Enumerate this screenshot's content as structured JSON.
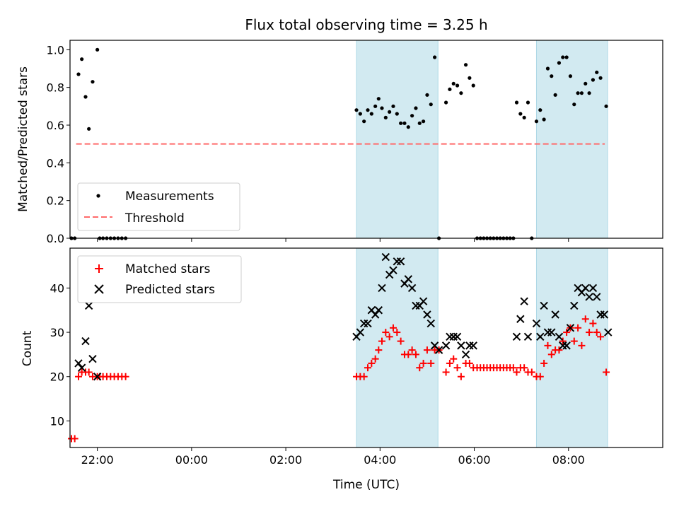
{
  "figure": {
    "title": "Flux total observing time = 3.25 h",
    "xlabel": "Time (UTC)"
  },
  "colors": {
    "band": "#add8e6",
    "threshold": "#ff6b6b",
    "matched": "#ff0000",
    "predicted": "#000000",
    "measurement": "#000000"
  },
  "chart_data": [
    {
      "type": "scatter",
      "panel": "ratio",
      "ylabel": "Matched/Predicted stars",
      "xlim": [
        -2.58,
        10.0
      ],
      "ylim": [
        0.0,
        1.05
      ],
      "x_ticks": [
        -2,
        0,
        2,
        4,
        6,
        8
      ],
      "x_tick_labels": [
        "22:00",
        "00:00",
        "02:00",
        "04:00",
        "06:00",
        "08:00"
      ],
      "y_ticks": [
        0.0,
        0.2,
        0.4,
        0.6,
        0.8,
        1.0
      ],
      "y_tick_labels": [
        "0.0",
        "0.2",
        "0.4",
        "0.6",
        "0.8",
        "1.0"
      ],
      "legend_placement": "lower-left",
      "legend": [
        {
          "key": "measurements",
          "label": "Measurements"
        },
        {
          "key": "threshold",
          "label": "Threshold"
        }
      ],
      "highlight_bands": [
        [
          3.5,
          5.23
        ],
        [
          7.32,
          8.83
        ]
      ],
      "threshold": {
        "y": 0.5,
        "x_range": [
          -2.45,
          8.77
        ]
      },
      "series": [
        {
          "name": "Measurements",
          "points": [
            [
              -2.55,
              0.0
            ],
            [
              -2.48,
              0.0
            ],
            [
              -2.4,
              0.87
            ],
            [
              -2.33,
              0.95
            ],
            [
              -2.25,
              0.75
            ],
            [
              -2.18,
              0.58
            ],
            [
              -2.1,
              0.83
            ],
            [
              -2.0,
              1.0
            ],
            [
              -1.95,
              0.0
            ],
            [
              -1.88,
              0.0
            ],
            [
              -1.8,
              0.0
            ],
            [
              -1.72,
              0.0
            ],
            [
              -1.64,
              0.0
            ],
            [
              -1.56,
              0.0
            ],
            [
              -1.48,
              0.0
            ],
            [
              -1.4,
              0.0
            ],
            [
              3.5,
              0.68
            ],
            [
              3.58,
              0.66
            ],
            [
              3.66,
              0.62
            ],
            [
              3.74,
              0.68
            ],
            [
              3.82,
              0.66
            ],
            [
              3.9,
              0.7
            ],
            [
              3.97,
              0.74
            ],
            [
              4.04,
              0.69
            ],
            [
              4.12,
              0.64
            ],
            [
              4.2,
              0.67
            ],
            [
              4.28,
              0.7
            ],
            [
              4.36,
              0.66
            ],
            [
              4.44,
              0.61
            ],
            [
              4.52,
              0.61
            ],
            [
              4.6,
              0.59
            ],
            [
              4.68,
              0.65
            ],
            [
              4.76,
              0.69
            ],
            [
              4.84,
              0.61
            ],
            [
              4.92,
              0.62
            ],
            [
              5.0,
              0.76
            ],
            [
              5.08,
              0.71
            ],
            [
              5.16,
              0.96
            ],
            [
              5.25,
              0.0
            ],
            [
              5.4,
              0.72
            ],
            [
              5.48,
              0.79
            ],
            [
              5.56,
              0.82
            ],
            [
              5.64,
              0.81
            ],
            [
              5.72,
              0.77
            ],
            [
              5.82,
              0.92
            ],
            [
              5.9,
              0.85
            ],
            [
              5.98,
              0.81
            ],
            [
              6.06,
              0.0
            ],
            [
              6.13,
              0.0
            ],
            [
              6.2,
              0.0
            ],
            [
              6.27,
              0.0
            ],
            [
              6.34,
              0.0
            ],
            [
              6.41,
              0.0
            ],
            [
              6.48,
              0.0
            ],
            [
              6.55,
              0.0
            ],
            [
              6.62,
              0.0
            ],
            [
              6.69,
              0.0
            ],
            [
              6.76,
              0.0
            ],
            [
              6.83,
              0.0
            ],
            [
              6.9,
              0.72
            ],
            [
              6.98,
              0.66
            ],
            [
              7.06,
              0.64
            ],
            [
              7.14,
              0.72
            ],
            [
              7.22,
              0.0
            ],
            [
              7.32,
              0.62
            ],
            [
              7.4,
              0.68
            ],
            [
              7.48,
              0.63
            ],
            [
              7.56,
              0.9
            ],
            [
              7.64,
              0.86
            ],
            [
              7.72,
              0.76
            ],
            [
              7.8,
              0.93
            ],
            [
              7.88,
              0.96
            ],
            [
              7.96,
              0.96
            ],
            [
              8.04,
              0.86
            ],
            [
              8.12,
              0.71
            ],
            [
              8.2,
              0.77
            ],
            [
              8.28,
              0.77
            ],
            [
              8.36,
              0.82
            ],
            [
              8.44,
              0.77
            ],
            [
              8.52,
              0.84
            ],
            [
              8.6,
              0.88
            ],
            [
              8.68,
              0.85
            ],
            [
              8.8,
              0.7
            ]
          ]
        }
      ]
    },
    {
      "type": "scatter",
      "panel": "counts",
      "ylabel": "Count",
      "xlim": [
        -2.58,
        10.0
      ],
      "ylim": [
        4.0,
        49.0
      ],
      "x_ticks": [
        -2,
        0,
        2,
        4,
        6,
        8
      ],
      "x_tick_labels": [
        "22:00",
        "00:00",
        "02:00",
        "04:00",
        "06:00",
        "08:00"
      ],
      "y_ticks": [
        10,
        20,
        30,
        40
      ],
      "y_tick_labels": [
        "10",
        "20",
        "30",
        "40"
      ],
      "legend_placement": "upper-left",
      "legend": [
        {
          "key": "matched",
          "label": "Matched stars"
        },
        {
          "key": "predicted",
          "label": "Predicted stars"
        }
      ],
      "highlight_bands": [
        [
          3.5,
          5.23
        ],
        [
          7.32,
          8.83
        ]
      ],
      "series": [
        {
          "name": "Matched stars",
          "marker": "plus",
          "points": [
            [
              -2.55,
              6
            ],
            [
              -2.48,
              6
            ],
            [
              -2.4,
              20
            ],
            [
              -2.33,
              21
            ],
            [
              -2.25,
              21
            ],
            [
              -2.18,
              21
            ],
            [
              -2.1,
              20
            ],
            [
              -2.0,
              20
            ],
            [
              -1.95,
              20
            ],
            [
              -1.88,
              20
            ],
            [
              -1.8,
              20
            ],
            [
              -1.72,
              20
            ],
            [
              -1.64,
              20
            ],
            [
              -1.56,
              20
            ],
            [
              -1.48,
              20
            ],
            [
              -1.4,
              20
            ],
            [
              3.5,
              20
            ],
            [
              3.58,
              20
            ],
            [
              3.66,
              20
            ],
            [
              3.74,
              22
            ],
            [
              3.82,
              23
            ],
            [
              3.9,
              24
            ],
            [
              3.97,
              26
            ],
            [
              4.04,
              28
            ],
            [
              4.12,
              30
            ],
            [
              4.2,
              29
            ],
            [
              4.28,
              31
            ],
            [
              4.36,
              30
            ],
            [
              4.44,
              28
            ],
            [
              4.52,
              25
            ],
            [
              4.6,
              25
            ],
            [
              4.68,
              26
            ],
            [
              4.76,
              25
            ],
            [
              4.84,
              22
            ],
            [
              4.92,
              23
            ],
            [
              5.0,
              26
            ],
            [
              5.08,
              23
            ],
            [
              5.16,
              26
            ],
            [
              5.25,
              26
            ],
            [
              5.4,
              21
            ],
            [
              5.48,
              23
            ],
            [
              5.56,
              24
            ],
            [
              5.64,
              22
            ],
            [
              5.72,
              20
            ],
            [
              5.82,
              23
            ],
            [
              5.9,
              23
            ],
            [
              5.98,
              22
            ],
            [
              6.06,
              22
            ],
            [
              6.13,
              22
            ],
            [
              6.2,
              22
            ],
            [
              6.27,
              22
            ],
            [
              6.34,
              22
            ],
            [
              6.41,
              22
            ],
            [
              6.48,
              22
            ],
            [
              6.55,
              22
            ],
            [
              6.62,
              22
            ],
            [
              6.69,
              22
            ],
            [
              6.76,
              22
            ],
            [
              6.83,
              22
            ],
            [
              6.9,
              21
            ],
            [
              6.98,
              22
            ],
            [
              7.06,
              22
            ],
            [
              7.14,
              21
            ],
            [
              7.22,
              21
            ],
            [
              7.32,
              20
            ],
            [
              7.4,
              20
            ],
            [
              7.48,
              23
            ],
            [
              7.56,
              27
            ],
            [
              7.64,
              25
            ],
            [
              7.72,
              26
            ],
            [
              7.8,
              26
            ],
            [
              7.88,
              28
            ],
            [
              7.96,
              30
            ],
            [
              8.04,
              31
            ],
            [
              8.12,
              28
            ],
            [
              8.2,
              31
            ],
            [
              8.28,
              27
            ],
            [
              8.36,
              33
            ],
            [
              8.44,
              30
            ],
            [
              8.52,
              32
            ],
            [
              8.6,
              30
            ],
            [
              8.68,
              29
            ],
            [
              8.8,
              21
            ]
          ]
        },
        {
          "name": "Predicted stars",
          "marker": "x",
          "points": [
            [
              -2.4,
              23
            ],
            [
              -2.33,
              22
            ],
            [
              -2.25,
              28
            ],
            [
              -2.18,
              36
            ],
            [
              -2.1,
              24
            ],
            [
              -2.0,
              20
            ],
            [
              3.5,
              29
            ],
            [
              3.58,
              30
            ],
            [
              3.66,
              32
            ],
            [
              3.74,
              32
            ],
            [
              3.82,
              35
            ],
            [
              3.9,
              34
            ],
            [
              3.97,
              35
            ],
            [
              4.04,
              40
            ],
            [
              4.12,
              47
            ],
            [
              4.2,
              43
            ],
            [
              4.28,
              44
            ],
            [
              4.36,
              46
            ],
            [
              4.44,
              46
            ],
            [
              4.52,
              41
            ],
            [
              4.6,
              42
            ],
            [
              4.68,
              40
            ],
            [
              4.76,
              36
            ],
            [
              4.84,
              36
            ],
            [
              4.92,
              37
            ],
            [
              5.0,
              34
            ],
            [
              5.08,
              32
            ],
            [
              5.16,
              27
            ],
            [
              5.25,
              26
            ],
            [
              5.4,
              27
            ],
            [
              5.48,
              29
            ],
            [
              5.56,
              29
            ],
            [
              5.64,
              29
            ],
            [
              5.72,
              27
            ],
            [
              5.82,
              25
            ],
            [
              5.9,
              27
            ],
            [
              5.98,
              27
            ],
            [
              6.9,
              29
            ],
            [
              6.98,
              33
            ],
            [
              7.06,
              37
            ],
            [
              7.14,
              29
            ],
            [
              7.32,
              32
            ],
            [
              7.4,
              29
            ],
            [
              7.48,
              36
            ],
            [
              7.56,
              30
            ],
            [
              7.64,
              30
            ],
            [
              7.72,
              34
            ],
            [
              7.8,
              29
            ],
            [
              7.88,
              27
            ],
            [
              7.96,
              27
            ],
            [
              8.04,
              31
            ],
            [
              8.12,
              36
            ],
            [
              8.2,
              40
            ],
            [
              8.28,
              39
            ],
            [
              8.36,
              40
            ],
            [
              8.44,
              38
            ],
            [
              8.52,
              40
            ],
            [
              8.6,
              38
            ],
            [
              8.68,
              34
            ],
            [
              8.76,
              34
            ],
            [
              8.84,
              30
            ]
          ]
        }
      ]
    }
  ]
}
